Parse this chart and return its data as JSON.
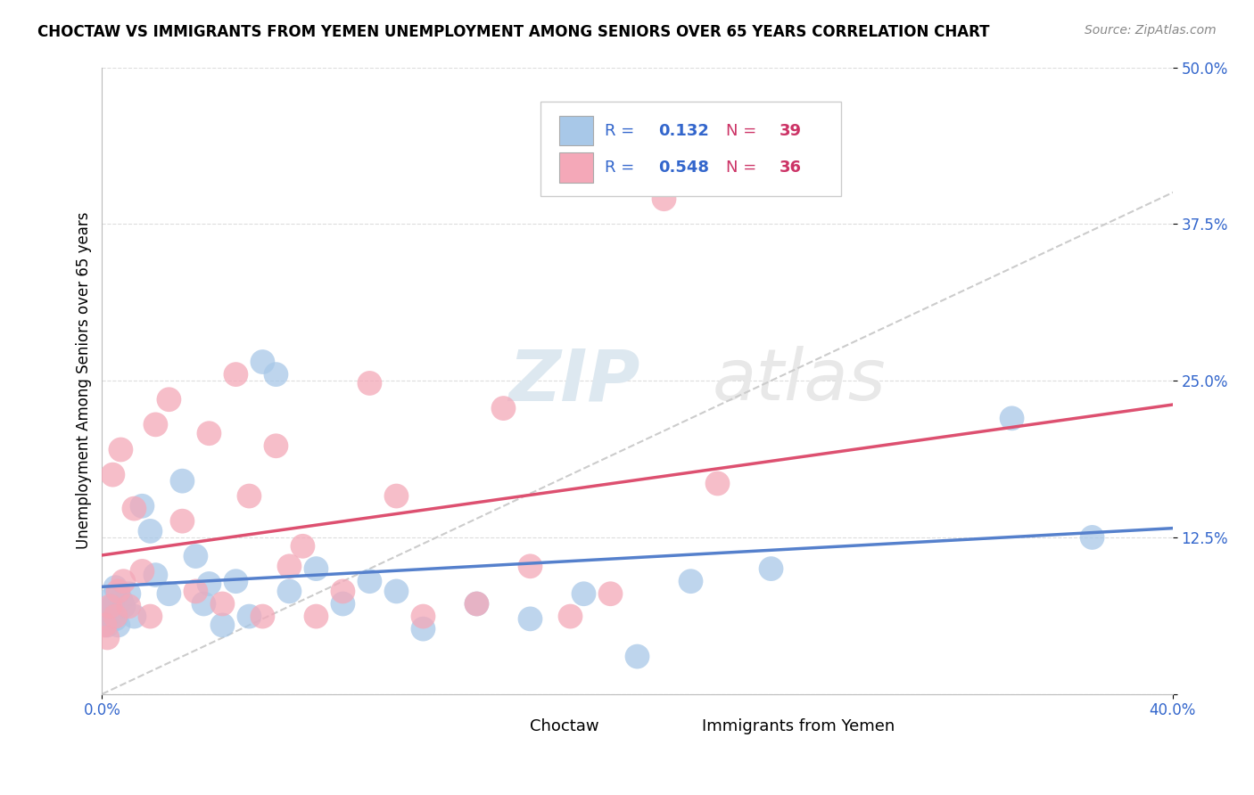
{
  "title": "CHOCTAW VS IMMIGRANTS FROM YEMEN UNEMPLOYMENT AMONG SENIORS OVER 65 YEARS CORRELATION CHART",
  "source": "Source: ZipAtlas.com",
  "ylabel": "Unemployment Among Seniors over 65 years",
  "xlim": [
    0.0,
    0.4
  ],
  "ylim": [
    0.0,
    0.5
  ],
  "yticks": [
    0.0,
    0.125,
    0.25,
    0.375,
    0.5
  ],
  "yticklabels": [
    "",
    "12.5%",
    "25.0%",
    "37.5%",
    "50.0%"
  ],
  "choctaw_color": "#a8c8e8",
  "yemen_color": "#f4a8b8",
  "choctaw_line_color": "#5580cc",
  "yemen_line_color": "#dd5070",
  "ref_line_color": "#cccccc",
  "choctaw_R": 0.132,
  "choctaw_N": 39,
  "yemen_R": 0.548,
  "yemen_N": 36,
  "legend_R_color": "#3366cc",
  "legend_N_color": "#cc3366",
  "tick_color": "#3366cc",
  "choctaw_x": [
    0.001,
    0.002,
    0.003,
    0.003,
    0.004,
    0.005,
    0.005,
    0.006,
    0.007,
    0.008,
    0.01,
    0.012,
    0.015,
    0.018,
    0.02,
    0.025,
    0.03,
    0.035,
    0.038,
    0.04,
    0.045,
    0.05,
    0.055,
    0.06,
    0.065,
    0.07,
    0.08,
    0.09,
    0.1,
    0.11,
    0.12,
    0.14,
    0.16,
    0.18,
    0.2,
    0.22,
    0.25,
    0.34,
    0.37
  ],
  "choctaw_y": [
    0.065,
    0.055,
    0.075,
    0.06,
    0.07,
    0.085,
    0.06,
    0.055,
    0.075,
    0.07,
    0.08,
    0.062,
    0.15,
    0.13,
    0.095,
    0.08,
    0.17,
    0.11,
    0.072,
    0.088,
    0.055,
    0.09,
    0.062,
    0.265,
    0.255,
    0.082,
    0.1,
    0.072,
    0.09,
    0.082,
    0.052,
    0.072,
    0.06,
    0.08,
    0.03,
    0.09,
    0.1,
    0.22,
    0.125
  ],
  "yemen_x": [
    0.001,
    0.002,
    0.003,
    0.004,
    0.005,
    0.006,
    0.007,
    0.008,
    0.01,
    0.012,
    0.015,
    0.018,
    0.02,
    0.025,
    0.03,
    0.035,
    0.04,
    0.045,
    0.05,
    0.055,
    0.06,
    0.065,
    0.07,
    0.075,
    0.08,
    0.09,
    0.1,
    0.11,
    0.12,
    0.14,
    0.15,
    0.16,
    0.175,
    0.19,
    0.21,
    0.23
  ],
  "yemen_y": [
    0.055,
    0.045,
    0.07,
    0.175,
    0.062,
    0.082,
    0.195,
    0.09,
    0.07,
    0.148,
    0.098,
    0.062,
    0.215,
    0.235,
    0.138,
    0.082,
    0.208,
    0.072,
    0.255,
    0.158,
    0.062,
    0.198,
    0.102,
    0.118,
    0.062,
    0.082,
    0.248,
    0.158,
    0.062,
    0.072,
    0.228,
    0.102,
    0.062,
    0.08,
    0.395,
    0.168
  ]
}
